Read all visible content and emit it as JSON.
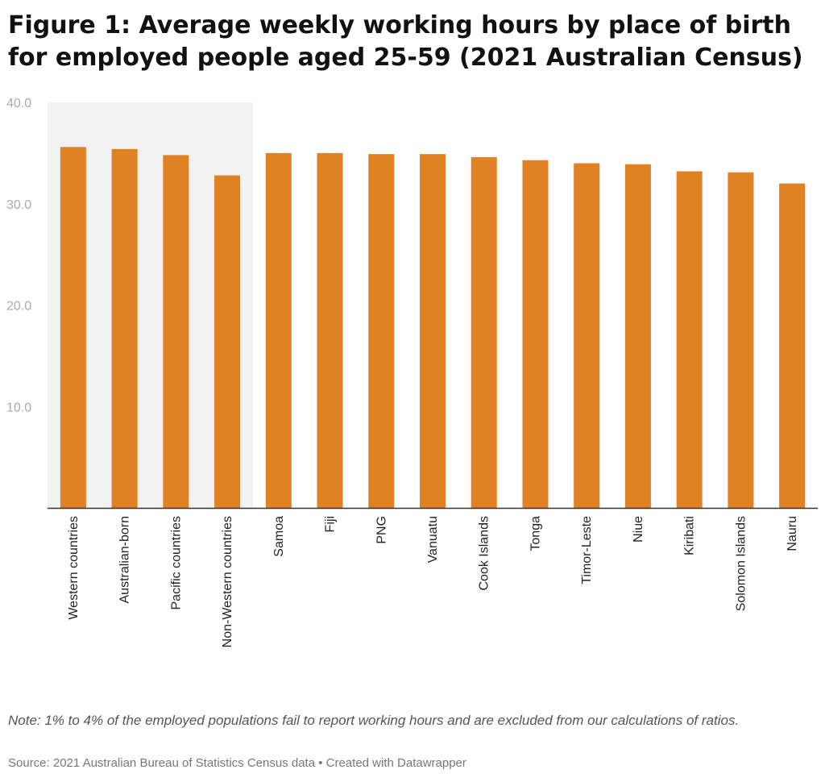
{
  "chart_data": {
    "type": "bar",
    "title": "Figure 1: Average weekly working hours by place of birth for employed people aged 25-59 (2021 Australian Census)",
    "categories": [
      "Western countries",
      "Australian-born",
      "Pacific countries",
      "Non-Western countries",
      "Samoa",
      "Fiji",
      "PNG",
      "Vanuatu",
      "Cook Islands",
      "Tonga",
      "Timor-Leste",
      "Niue",
      "Kiribati",
      "Solomon Islands",
      "Nauru"
    ],
    "values": [
      35.6,
      35.4,
      34.8,
      32.8,
      35.0,
      35.0,
      34.9,
      34.9,
      34.6,
      34.3,
      34.0,
      33.9,
      33.2,
      33.1,
      32.0
    ],
    "highlighted_categories": [
      "Western countries",
      "Australian-born",
      "Pacific countries",
      "Non-Western countries"
    ],
    "ylim": [
      0,
      40
    ],
    "yticks": [
      10,
      20,
      30,
      40
    ],
    "ytick_labels": [
      "10.0",
      "20.0",
      "30.0",
      "40.0"
    ],
    "xlabel": "",
    "ylabel": "",
    "grid": false,
    "legend": "none",
    "colors": {
      "bar": "#e08224",
      "highlight_band": "#f2f2f2",
      "axis": "#333333"
    },
    "note": "Note: 1% to 4% of the employed populations fail to report working hours and are excluded from our calculations of ratios.",
    "source": "Source: 2021 Australian Bureau of Statistics Census data • Created with Datawrapper"
  }
}
